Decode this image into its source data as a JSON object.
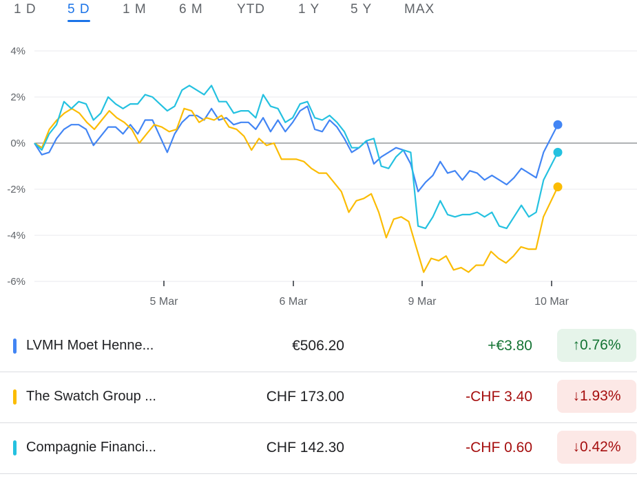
{
  "tabs": [
    {
      "label": "1 D",
      "active": false
    },
    {
      "label": "5 D",
      "active": true
    },
    {
      "label": "1 M",
      "active": false
    },
    {
      "label": "6 M",
      "active": false
    },
    {
      "label": "YTD",
      "active": false
    },
    {
      "label": "1 Y",
      "active": false
    },
    {
      "label": "5 Y",
      "active": false
    },
    {
      "label": "MAX",
      "active": false
    }
  ],
  "colors": {
    "lvmh": "#4285f4",
    "swatch": "#fbbc04",
    "richemont": "#24c1e0",
    "up": "#137333",
    "down": "#a50e0e"
  },
  "chart_data": {
    "type": "line",
    "ylabel_format": "percent",
    "ylim": [
      -6,
      4
    ],
    "yticks": [
      "4%",
      "2%",
      "0%",
      "-2%",
      "-4%",
      "-6%"
    ],
    "xticks": [
      "5 Mar",
      "6 Mar",
      "9 Mar",
      "10 Mar"
    ],
    "grid": true,
    "legend": "none",
    "series": [
      {
        "name": "LVMH Moet Henne...",
        "color": "#4285f4",
        "values": [
          0.0,
          -0.5,
          -0.4,
          0.2,
          0.6,
          0.8,
          0.8,
          0.6,
          -0.1,
          0.3,
          0.7,
          0.7,
          0.4,
          0.8,
          0.4,
          1.0,
          1.0,
          0.3,
          -0.4,
          0.4,
          0.9,
          1.2,
          1.2,
          1.0,
          1.5,
          1.0,
          1.1,
          0.8,
          0.9,
          0.9,
          0.6,
          1.1,
          0.5,
          1.0,
          0.5,
          0.9,
          1.4,
          1.6,
          0.6,
          0.5,
          1.0,
          0.7,
          0.2,
          -0.4,
          -0.2,
          0.1,
          -0.9,
          -0.6,
          -0.4,
          -0.2,
          -0.3,
          -0.9,
          -2.1,
          -1.7,
          -1.4,
          -0.8,
          -1.3,
          -1.2,
          -1.6,
          -1.2,
          -1.3,
          -1.6,
          -1.4,
          -1.6,
          -1.8,
          -1.5,
          -1.1,
          -1.3,
          -1.5,
          -0.4,
          0.8
        ]
      },
      {
        "name": "The Swatch Group ...",
        "color": "#fbbc04",
        "values": [
          0.0,
          -0.2,
          0.6,
          1.0,
          1.3,
          1.5,
          1.3,
          0.9,
          0.6,
          1.0,
          1.4,
          1.1,
          0.9,
          0.6,
          0.0,
          0.4,
          0.8,
          0.7,
          0.5,
          0.6,
          1.5,
          1.4,
          0.9,
          1.1,
          1.0,
          1.2,
          0.7,
          0.6,
          0.3,
          -0.3,
          0.2,
          -0.1,
          0.0,
          -0.7,
          -0.7,
          -0.7,
          -0.8,
          -1.1,
          -1.3,
          -1.3,
          -1.7,
          -2.1,
          -3.0,
          -2.5,
          -2.4,
          -2.2,
          -3.0,
          -4.1,
          -3.3,
          -3.2,
          -3.4,
          -4.5,
          -5.6,
          -5.0,
          -5.1,
          -4.9,
          -5.5,
          -5.4,
          -5.6,
          -5.3,
          -5.3,
          -4.7,
          -5.0,
          -5.2,
          -4.9,
          -4.5,
          -4.6,
          -4.6,
          -3.2,
          -1.9
        ]
      },
      {
        "name": "Compagnie Financi...",
        "color": "#24c1e0",
        "values": [
          0.0,
          -0.3,
          0.4,
          0.8,
          1.8,
          1.5,
          1.8,
          1.7,
          1.0,
          1.3,
          2.0,
          1.7,
          1.5,
          1.7,
          1.7,
          2.1,
          2.0,
          1.7,
          1.4,
          1.6,
          2.3,
          2.5,
          2.3,
          2.1,
          2.5,
          1.8,
          1.8,
          1.3,
          1.4,
          1.4,
          1.1,
          2.1,
          1.6,
          1.5,
          0.9,
          1.1,
          1.7,
          1.8,
          1.1,
          1.0,
          1.2,
          0.9,
          0.5,
          -0.2,
          -0.2,
          0.1,
          0.2,
          -1.0,
          -1.1,
          -0.6,
          -0.3,
          -0.4,
          -3.6,
          -3.7,
          -3.2,
          -2.5,
          -3.1,
          -3.2,
          -3.1,
          -3.1,
          -3.0,
          -3.2,
          -3.0,
          -3.6,
          -3.7,
          -3.2,
          -2.7,
          -3.2,
          -3.0,
          -1.6,
          -0.4
        ]
      }
    ]
  },
  "stocks": [
    {
      "name": "LVMH Moet Henne...",
      "price": "€506.20",
      "change": "+€3.80",
      "pct": "↑0.76%",
      "dir": "up"
    },
    {
      "name": "The Swatch Group ...",
      "price": "CHF 173.00",
      "change": "-CHF 3.40",
      "pct": "↓1.93%",
      "dir": "down"
    },
    {
      "name": "Compagnie Financi...",
      "price": "CHF 142.30",
      "change": "-CHF 0.60",
      "pct": "↓0.42%",
      "dir": "down"
    }
  ]
}
